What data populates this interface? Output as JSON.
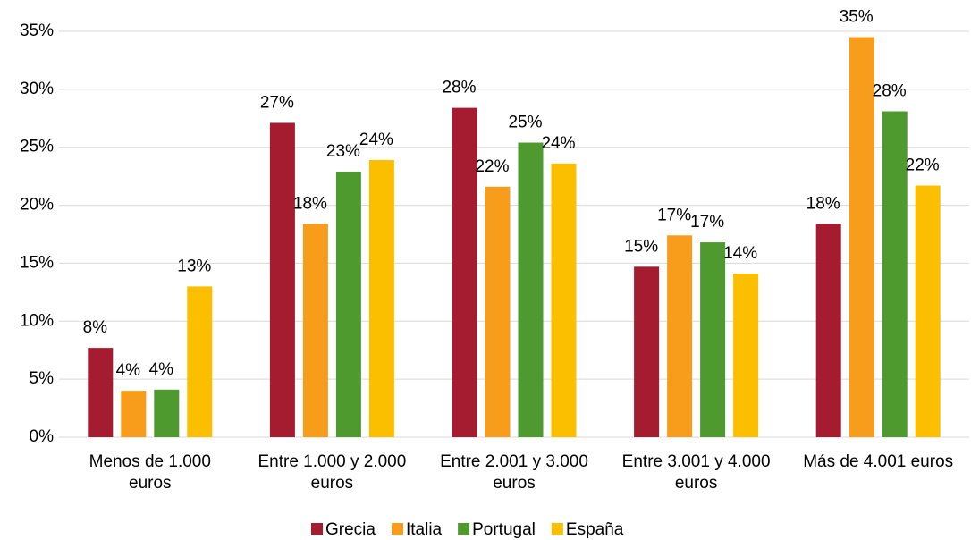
{
  "chart_data": {
    "type": "bar",
    "categories": [
      "Menos de 1.000 euros",
      "Entre 1.000 y 2.000 euros",
      "Entre 2.001 y 3.000 euros",
      "Entre 3.001 y 4.000 euros",
      "Más de 4.001 euros"
    ],
    "series": [
      {
        "name": "Grecia",
        "color": "#a51c30",
        "values": [
          7.7,
          27.1,
          28.4,
          14.7,
          18.4
        ],
        "value_labels": [
          "8%",
          "27%",
          "28%",
          "15%",
          "18%"
        ]
      },
      {
        "name": "Italia",
        "color": "#f89c1c",
        "values": [
          4.0,
          18.4,
          21.6,
          17.4,
          34.5
        ],
        "value_labels": [
          "4%",
          "18%",
          "22%",
          "17%",
          "35%"
        ]
      },
      {
        "name": "Portugal",
        "color": "#4f9a2f",
        "values": [
          4.1,
          22.9,
          25.4,
          16.8,
          28.1
        ],
        "value_labels": [
          "4%",
          "23%",
          "25%",
          "17%",
          "28%"
        ]
      },
      {
        "name": "España",
        "color": "#fbbf00",
        "values": [
          13.0,
          23.9,
          23.6,
          14.1,
          21.7
        ],
        "value_labels": [
          "13%",
          "24%",
          "24%",
          "14%",
          "22%"
        ]
      }
    ],
    "ylim": [
      0,
      35
    ],
    "yticks": [
      {
        "value": 0,
        "label": "0%"
      },
      {
        "value": 5,
        "label": "5%"
      },
      {
        "value": 10,
        "label": "10%"
      },
      {
        "value": 15,
        "label": "15%"
      },
      {
        "value": 20,
        "label": "20%"
      },
      {
        "value": 25,
        "label": "25%"
      },
      {
        "value": 30,
        "label": "30%"
      },
      {
        "value": 35,
        "label": "35%"
      }
    ],
    "grid": true,
    "legend": "bottom"
  }
}
